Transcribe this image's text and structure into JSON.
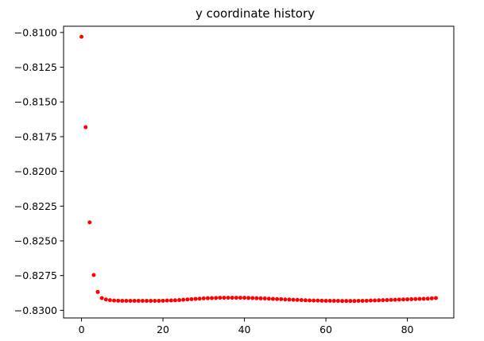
{
  "chart_data": {
    "type": "scatter",
    "title": "y coordinate history",
    "xlabel": "",
    "ylabel": "",
    "xlim": [
      -4.4,
      91.4
    ],
    "ylim": [
      -0.83055,
      -0.80955
    ],
    "xticks": [
      0,
      20,
      40,
      60,
      80
    ],
    "xtick_labels": [
      "0",
      "20",
      "40",
      "60",
      "80"
    ],
    "yticks": [
      -0.81,
      -0.8125,
      -0.815,
      -0.8175,
      -0.82,
      -0.8225,
      -0.825,
      -0.8275,
      -0.83
    ],
    "ytick_labels": [
      "−0.8100",
      "−0.8125",
      "−0.8150",
      "−0.8175",
      "−0.8200",
      "−0.8225",
      "−0.8250",
      "−0.8275",
      "−0.8300"
    ],
    "grid": false,
    "marker_color": "#ff0000",
    "series": [
      {
        "x": [
          0,
          1,
          2,
          3,
          4,
          5,
          6,
          7,
          8,
          9,
          10,
          11,
          12,
          13,
          14,
          15,
          16,
          17,
          18,
          19,
          20,
          21,
          22,
          23,
          24,
          25,
          26,
          27,
          28,
          29,
          30,
          31,
          32,
          33,
          34,
          35,
          36,
          37,
          38,
          39,
          40,
          41,
          42,
          43,
          44,
          45,
          46,
          47,
          48,
          49,
          50,
          51,
          52,
          53,
          54,
          55,
          56,
          57,
          58,
          59,
          60,
          61,
          62,
          63,
          64,
          65,
          66,
          67,
          68,
          69,
          70,
          71,
          72,
          73,
          74,
          75,
          76,
          77,
          78,
          79,
          80,
          81,
          82,
          83,
          84,
          85,
          86,
          87
        ],
        "y": [
          -0.81031,
          -0.81682,
          -0.82367,
          -0.82746,
          -0.82868,
          -0.82912,
          -0.82922,
          -0.82927,
          -0.8293,
          -0.82931,
          -0.82932,
          -0.82932,
          -0.82932,
          -0.82932,
          -0.82932,
          -0.82932,
          -0.82932,
          -0.82932,
          -0.82932,
          -0.82932,
          -0.82931,
          -0.8293,
          -0.82929,
          -0.82928,
          -0.82926,
          -0.82924,
          -0.82922,
          -0.8292,
          -0.82918,
          -0.82916,
          -0.82914,
          -0.82913,
          -0.82912,
          -0.82911,
          -0.8291,
          -0.8291,
          -0.8291,
          -0.8291,
          -0.8291,
          -0.8291,
          -0.8291,
          -0.82911,
          -0.82912,
          -0.82913,
          -0.82914,
          -0.82915,
          -0.82916,
          -0.82918,
          -0.82919,
          -0.8292,
          -0.82922,
          -0.82923,
          -0.82924,
          -0.82925,
          -0.82926,
          -0.82928,
          -0.82929,
          -0.8293,
          -0.8293,
          -0.82931,
          -0.82932,
          -0.82932,
          -0.82932,
          -0.82932,
          -0.82933,
          -0.82933,
          -0.82933,
          -0.82933,
          -0.82932,
          -0.82932,
          -0.82931,
          -0.8293,
          -0.82929,
          -0.82928,
          -0.82927,
          -0.82926,
          -0.82925,
          -0.82924,
          -0.82923,
          -0.82922,
          -0.82921,
          -0.8292,
          -0.82919,
          -0.82918,
          -0.82917,
          -0.82916,
          -0.82914,
          -0.82912
        ]
      }
    ]
  }
}
